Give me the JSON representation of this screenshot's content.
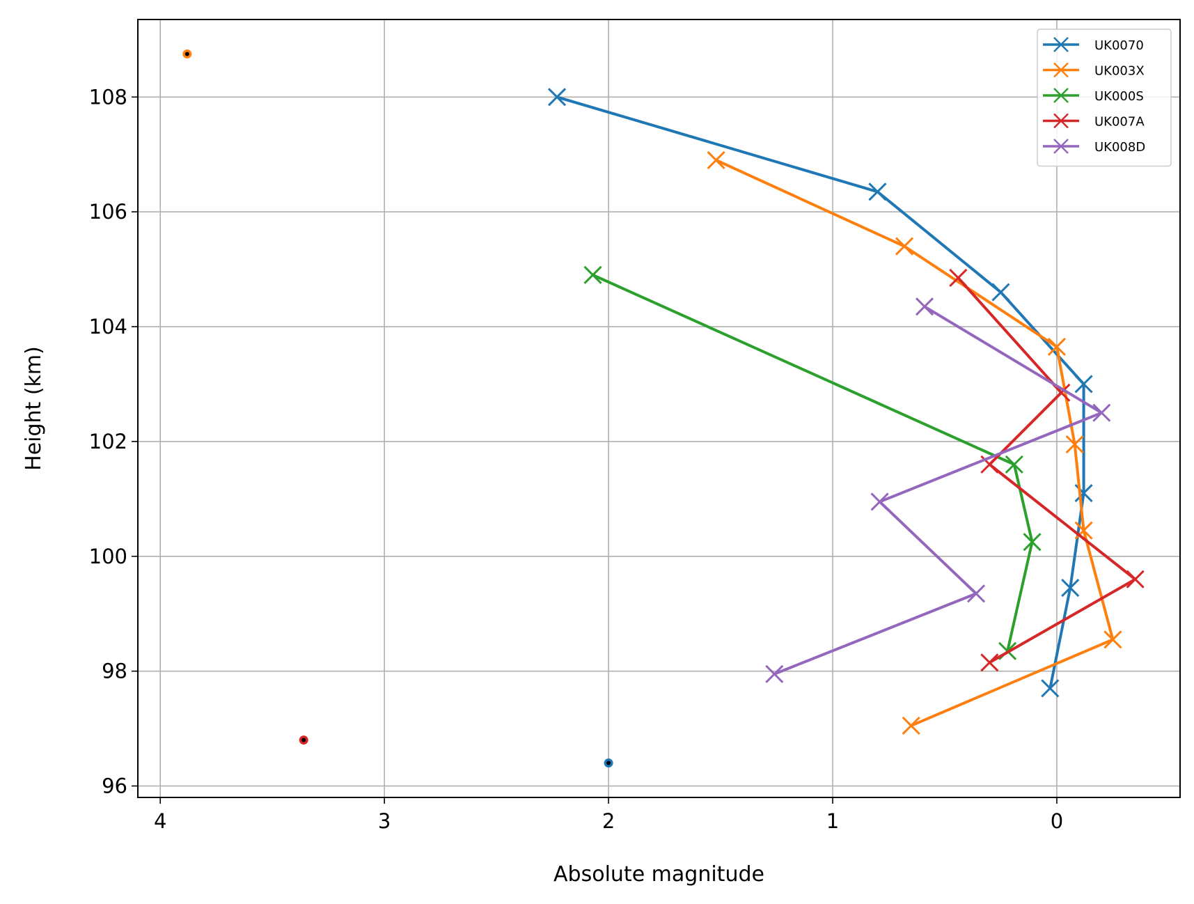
{
  "chart_data": {
    "type": "line",
    "xlabel": "Absolute magnitude",
    "ylabel": "Height (km)",
    "xlim": [
      4.1,
      -0.55
    ],
    "ylim": [
      95.8,
      109.35
    ],
    "x_inverted": true,
    "xticks": [
      4,
      3,
      2,
      1,
      0
    ],
    "yticks": [
      96,
      98,
      100,
      102,
      104,
      106,
      108
    ],
    "grid": true,
    "legend_position": "top-right",
    "series": [
      {
        "name": "UK0070",
        "color": "#1f77b4",
        "marker": "x",
        "points": [
          [
            2.23,
            108.0
          ],
          [
            0.8,
            106.35
          ],
          [
            0.25,
            104.6
          ],
          [
            -0.12,
            103.0
          ],
          [
            -0.12,
            101.1
          ],
          [
            -0.06,
            99.45
          ],
          [
            0.03,
            97.7
          ]
        ],
        "endpoint": [
          2.0,
          96.4
        ]
      },
      {
        "name": "UK003X",
        "color": "#ff7f0e",
        "marker": "x",
        "points": [
          [
            1.52,
            106.9
          ],
          [
            0.68,
            105.4
          ],
          [
            0.0,
            103.65
          ],
          [
            -0.08,
            101.95
          ],
          [
            -0.12,
            100.45
          ],
          [
            -0.25,
            98.55
          ],
          [
            0.65,
            97.05
          ]
        ],
        "endpoint": [
          3.88,
          108.75
        ]
      },
      {
        "name": "UK000S",
        "color": "#2ca02c",
        "marker": "x",
        "points": [
          [
            2.07,
            104.9
          ],
          [
            0.19,
            101.6
          ],
          [
            0.11,
            100.25
          ],
          [
            0.22,
            98.35
          ]
        ]
      },
      {
        "name": "UK007A",
        "color": "#d62728",
        "marker": "x",
        "points": [
          [
            0.44,
            104.85
          ],
          [
            -0.02,
            102.85
          ],
          [
            0.3,
            101.6
          ],
          [
            -0.35,
            99.6
          ],
          [
            0.3,
            98.15
          ]
        ],
        "endpoint": [
          3.36,
          96.8
        ]
      },
      {
        "name": "UK008D",
        "color": "#9467bd",
        "marker": "x",
        "points": [
          [
            0.59,
            104.35
          ],
          [
            -0.2,
            102.5
          ],
          [
            0.79,
            100.95
          ],
          [
            0.36,
            99.35
          ],
          [
            1.26,
            97.95
          ]
        ]
      }
    ]
  }
}
